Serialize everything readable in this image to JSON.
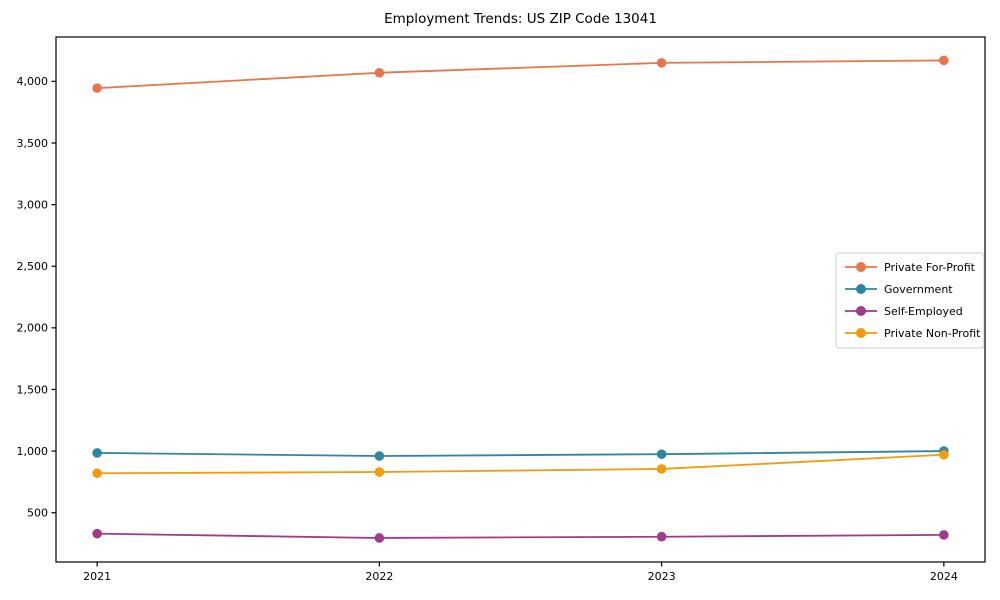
{
  "figure": {
    "background": "#ffffff",
    "axes_edge_color": "#000000",
    "tick_label_color": "#000000"
  },
  "chart_data": {
    "type": "line",
    "title": "Employment Trends: US ZIP Code 13041",
    "xlabel": "",
    "ylabel": "",
    "x": [
      2021,
      2022,
      2023,
      2024
    ],
    "xtick_labels": [
      "2021",
      "2022",
      "2023",
      "2024"
    ],
    "series": [
      {
        "name": "Private For-Profit",
        "color": "#e8764c",
        "values": [
          3945,
          4070,
          4150,
          4170
        ]
      },
      {
        "name": "Government",
        "color": "#2f86a3",
        "values": [
          985,
          960,
          975,
          1000
        ]
      },
      {
        "name": "Self-Employed",
        "color": "#a03a8a",
        "values": [
          330,
          295,
          305,
          320
        ]
      },
      {
        "name": "Private Non-Profit",
        "color": "#f19b0e",
        "values": [
          820,
          830,
          855,
          970
        ]
      }
    ],
    "ylim": [
      100,
      4360
    ],
    "yticks": [
      500,
      1000,
      1500,
      2000,
      2500,
      3000,
      3500,
      4000
    ],
    "ytick_labels": [
      "500",
      "1,000",
      "1,500",
      "2,000",
      "2,500",
      "3,000",
      "3,500",
      "4,000"
    ],
    "grid": false,
    "marker": "circle",
    "legend_position": "center right",
    "legend_border_color": "#cccccc",
    "legend_background": "#ffffff"
  }
}
